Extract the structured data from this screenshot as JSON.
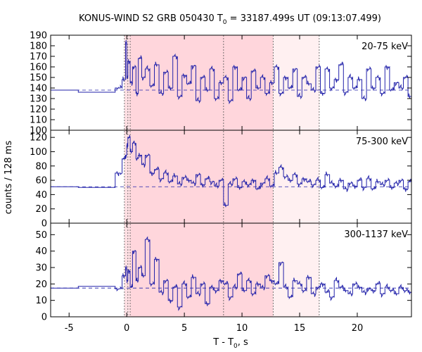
{
  "chart_data": {
    "type": "line",
    "title_prefix": "KONUS-WIND S2 GRB 050430 T",
    "title_sub": "0",
    "title_suffix": " = 33187.499s UT (09:13:07.499)",
    "xlabel_prefix": "T - T",
    "xlabel_sub": "0",
    "xlabel_suffix": ", s",
    "ylabel": "counts / 128 ms",
    "xlim": [
      -6.6,
      24.7
    ],
    "xticks": [
      -5,
      0,
      5,
      10,
      15,
      20
    ],
    "xtick_labels": [
      "-5",
      "0",
      "5",
      "10",
      "15",
      "20"
    ],
    "vlines": [
      -0.2,
      0.1,
      0.3,
      8.4,
      12.7,
      16.7
    ],
    "shaded_regions": [
      {
        "from": -0.2,
        "to": 12.7,
        "color": "#ffe0e4"
      },
      {
        "from": 0.3,
        "to": 12.7,
        "color": "#ffd6dc"
      },
      {
        "from": 12.7,
        "to": 16.7,
        "color": "#fff0f1"
      }
    ],
    "line_color": "#2222aa",
    "panels": [
      {
        "name": "20-75 keV",
        "ylim": [
          100,
          190
        ],
        "yticks": [
          100,
          110,
          120,
          130,
          140,
          150,
          160,
          170,
          180,
          190
        ],
        "ytick_labels": [
          "100",
          "110",
          "120",
          "130",
          "140",
          "150",
          "160",
          "170",
          "180",
          "190"
        ],
        "background": 138,
        "pre_step_x": -4.2,
        "pre_levels": [
          138,
          136,
          139
        ],
        "burst_x": [
          -1.0,
          -0.4,
          -0.1,
          0.0,
          0.1,
          0.3,
          0.5,
          0.8,
          1.0,
          1.3,
          1.6,
          2.0,
          2.4,
          2.8,
          3.2,
          3.6,
          4.0,
          4.4,
          4.8,
          5.2,
          5.6,
          6.0,
          6.4,
          6.8,
          7.2,
          7.6,
          8.0,
          8.4,
          8.8,
          9.2,
          9.6,
          10.0,
          10.4,
          10.8,
          11.2,
          11.6,
          12.0,
          12.4,
          12.8,
          13.2,
          13.6,
          14.0,
          14.4,
          14.8,
          15.2,
          15.6,
          16.0,
          16.4,
          16.8,
          17.2,
          17.6,
          18.0,
          18.4,
          18.8,
          19.2,
          19.6,
          20.0,
          20.4,
          20.8,
          21.2,
          21.6,
          22.0,
          22.4,
          22.8,
          23.2,
          23.6,
          24.0,
          24.4
        ],
        "burst_y": [
          140,
          148,
          183,
          150,
          165,
          145,
          160,
          135,
          168,
          150,
          158,
          142,
          162,
          135,
          155,
          140,
          170,
          132,
          152,
          144,
          161,
          128,
          150,
          138,
          158,
          130,
          145,
          150,
          128,
          160,
          138,
          150,
          130,
          156,
          140,
          150,
          135,
          145,
          160,
          135,
          150,
          140,
          158,
          132,
          150,
          144,
          138,
          160,
          135,
          158,
          140,
          148,
          162,
          136,
          150,
          140,
          148,
          130,
          158,
          140,
          150,
          135,
          160,
          138,
          145,
          140,
          150,
          132
        ]
      },
      {
        "name": "75-300 keV",
        "ylim": [
          0,
          130
        ],
        "yticks": [
          0,
          20,
          40,
          60,
          80,
          100,
          120
        ],
        "ytick_labels": [
          "0",
          "20",
          "40",
          "60",
          "80",
          "100",
          "120"
        ],
        "background": 51,
        "pre_step_x": -4.2,
        "pre_levels": [
          51,
          50,
          51
        ],
        "burst_x": [
          -1.0,
          -0.4,
          -0.1,
          0.0,
          0.1,
          0.3,
          0.5,
          0.8,
          1.0,
          1.3,
          1.6,
          2.0,
          2.4,
          2.8,
          3.2,
          3.6,
          4.0,
          4.4,
          4.8,
          5.2,
          5.6,
          6.0,
          6.4,
          6.8,
          7.2,
          7.6,
          8.0,
          8.4,
          8.8,
          9.2,
          9.6,
          10.0,
          10.4,
          10.8,
          11.2,
          11.6,
          12.0,
          12.4,
          12.8,
          13.2,
          13.6,
          14.0,
          14.4,
          14.8,
          15.2,
          15.6,
          16.0,
          16.4,
          16.8,
          17.2,
          17.6,
          18.0,
          18.4,
          18.8,
          19.2,
          19.6,
          20.0,
          20.4,
          20.8,
          21.2,
          21.6,
          22.0,
          22.4,
          22.8,
          23.2,
          23.6,
          24.0,
          24.4
        ],
        "burst_y": [
          70,
          90,
          95,
          108,
          120,
          100,
          112,
          90,
          95,
          82,
          95,
          70,
          75,
          62,
          70,
          58,
          66,
          55,
          64,
          60,
          56,
          68,
          54,
          62,
          58,
          52,
          60,
          25,
          55,
          62,
          50,
          58,
          54,
          60,
          48,
          56,
          62,
          52,
          70,
          78,
          65,
          60,
          68,
          55,
          62,
          58,
          54,
          60,
          50,
          68,
          56,
          52,
          60,
          48,
          56,
          52,
          60,
          50,
          62,
          48,
          58,
          54,
          60,
          50,
          56,
          60,
          48,
          58
        ]
      },
      {
        "name": "300-1137 keV",
        "ylim": [
          0,
          57
        ],
        "yticks": [
          0,
          10,
          20,
          30,
          40,
          50
        ],
        "ytick_labels": [
          "0",
          "10",
          "20",
          "30",
          "40",
          "50"
        ],
        "background": 17.5,
        "pre_step_x": -4.2,
        "pre_levels": [
          17.5,
          18.5,
          18
        ],
        "burst_x": [
          -1.0,
          -0.4,
          -0.1,
          0.0,
          0.1,
          0.3,
          0.5,
          0.8,
          1.0,
          1.3,
          1.6,
          2.0,
          2.4,
          2.8,
          3.2,
          3.6,
          4.0,
          4.4,
          4.8,
          5.2,
          5.6,
          6.0,
          6.4,
          6.8,
          7.2,
          7.6,
          8.0,
          8.4,
          8.8,
          9.2,
          9.6,
          10.0,
          10.4,
          10.8,
          11.2,
          11.6,
          12.0,
          12.4,
          12.8,
          13.2,
          13.6,
          14.0,
          14.4,
          14.8,
          15.2,
          15.6,
          16.0,
          16.4,
          16.8,
          17.2,
          17.6,
          18.0,
          18.4,
          18.8,
          19.2,
          19.6,
          20.0,
          20.4,
          20.8,
          21.2,
          21.6,
          22.0,
          22.4,
          22.8,
          23.2,
          23.6,
          24.0,
          24.4
        ],
        "burst_y": [
          17,
          25,
          30,
          22,
          28,
          18,
          40,
          22,
          30,
          25,
          47,
          20,
          35,
          15,
          22,
          10,
          18,
          6,
          20,
          12,
          24,
          14,
          20,
          8,
          18,
          16,
          22,
          20,
          12,
          18,
          26,
          16,
          22,
          14,
          20,
          18,
          25,
          22,
          20,
          33,
          18,
          12,
          22,
          20,
          16,
          24,
          14,
          18,
          20,
          15,
          12,
          22,
          18,
          16,
          14,
          20,
          18,
          15,
          17,
          16,
          20,
          14,
          18,
          16,
          14,
          18,
          16,
          15
        ]
      }
    ]
  }
}
